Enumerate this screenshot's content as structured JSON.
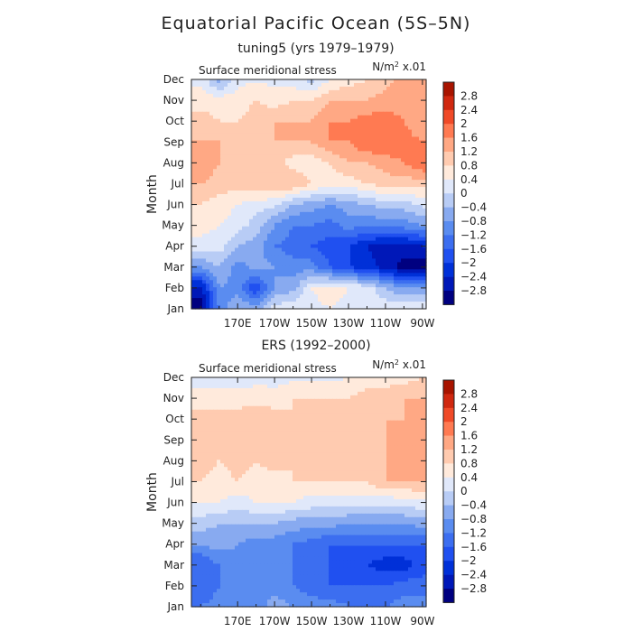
{
  "figure": {
    "title": "Equatorial Pacific Ocean (5S–5N)"
  },
  "colorbar_labels": [
    "2.8",
    "2.4",
    "2",
    "1.6",
    "1.2",
    "0.8",
    "0.4",
    "0",
    "−0.4",
    "−0.8",
    "−1.2",
    "−1.6",
    "−2",
    "−2.4",
    "−2.8"
  ],
  "chart_data": [
    {
      "type": "heatmap",
      "title": "tuning5 (yrs 1979–1979)",
      "panel_label": "Surface meridional stress",
      "unit_base": "N/m",
      "unit_exp": "2",
      "unit_scale": " x.01",
      "ylabel": "Month",
      "xlabel": "",
      "x": [
        150,
        160,
        170,
        180,
        190,
        200,
        210,
        220,
        230,
        240,
        250,
        260,
        270
      ],
      "x_tick_values": [
        170,
        190,
        210,
        230,
        250,
        270
      ],
      "x_tick_labels": [
        "170E",
        "170W",
        "150W",
        "130W",
        "110W",
        "90W"
      ],
      "xlim": [
        145,
        272
      ],
      "y_labels": [
        "Jan",
        "Feb",
        "Mar",
        "Apr",
        "May",
        "Jun",
        "Jul",
        "Aug",
        "Sep",
        "Oct",
        "Nov",
        "Dec"
      ],
      "levels": [
        -2.8,
        -2.4,
        -2,
        -1.6,
        -1.2,
        -0.8,
        -0.4,
        0,
        0.4,
        0.8,
        1.2,
        1.6,
        2,
        2.4,
        2.8
      ],
      "z": [
        [
          -3.0,
          -1.2,
          -0.4,
          -0.6,
          0.2,
          0.4,
          0.3,
          0.4,
          0.3,
          0.4,
          0.3,
          0.3,
          0.3
        ],
        [
          -2.6,
          -0.8,
          -1.0,
          -2.0,
          -0.8,
          -0.6,
          0.4,
          0.6,
          0.4,
          0.2,
          -0.4,
          -0.8,
          -0.8
        ],
        [
          -0.8,
          -0.4,
          -1.0,
          -0.6,
          -0.8,
          -1.0,
          -1.0,
          -1.6,
          -2.0,
          -2.2,
          -2.6,
          -3.0,
          -3.0
        ],
        [
          0.2,
          0.2,
          -0.4,
          -0.6,
          -1.2,
          -1.4,
          -1.6,
          -1.8,
          -2.0,
          -2.4,
          -2.6,
          -2.6,
          -2.4
        ],
        [
          0.6,
          0.4,
          0.2,
          -0.2,
          -0.8,
          -1.2,
          -1.2,
          -1.4,
          -1.0,
          -1.2,
          -1.0,
          -1.0,
          -0.8
        ],
        [
          0.8,
          0.6,
          0.4,
          0.2,
          0.1,
          -0.4,
          -0.6,
          -0.8,
          -0.6,
          -0.4,
          -0.2,
          -0.2,
          0.1
        ],
        [
          1.2,
          1.0,
          1.0,
          1.2,
          1.2,
          1.2,
          0.8,
          0.6,
          0.6,
          0.8,
          1.0,
          1.0,
          1.0
        ],
        [
          1.6,
          1.2,
          1.0,
          1.2,
          1.0,
          0.6,
          0.6,
          0.8,
          1.2,
          1.2,
          1.4,
          1.6,
          2.0
        ],
        [
          1.2,
          1.2,
          1.0,
          1.0,
          1.2,
          1.2,
          1.2,
          1.6,
          1.6,
          2.0,
          2.0,
          1.8,
          1.6
        ],
        [
          1.0,
          0.8,
          0.8,
          1.0,
          1.2,
          1.2,
          1.2,
          1.6,
          1.6,
          1.8,
          1.8,
          1.6,
          1.2
        ],
        [
          0.6,
          0.6,
          0.6,
          0.8,
          0.6,
          0.8,
          0.8,
          1.2,
          1.2,
          1.2,
          1.4,
          1.4,
          1.2
        ],
        [
          0.3,
          -0.6,
          0.3,
          0.3,
          0.3,
          0.2,
          -0.2,
          0.4,
          0.6,
          0.8,
          1.0,
          1.4,
          1.2
        ]
      ]
    },
    {
      "type": "heatmap",
      "title": "ERS (1992–2000)",
      "panel_label": "Surface meridional stress",
      "unit_base": "N/m",
      "unit_exp": "2",
      "unit_scale": " x.01",
      "ylabel": "Month",
      "xlabel": "",
      "x": [
        150,
        160,
        170,
        180,
        190,
        200,
        210,
        220,
        230,
        240,
        250,
        260,
        270
      ],
      "x_tick_values": [
        170,
        190,
        210,
        230,
        250,
        270
      ],
      "x_tick_labels": [
        "170E",
        "170W",
        "150W",
        "130W",
        "110W",
        "90W"
      ],
      "xlim": [
        145,
        272
      ],
      "y_labels": [
        "Jan",
        "Feb",
        "Mar",
        "Apr",
        "May",
        "Jun",
        "Jul",
        "Aug",
        "Sep",
        "Oct",
        "Nov",
        "Dec"
      ],
      "levels": [
        -2.8,
        -2.4,
        -2,
        -1.6,
        -1.2,
        -0.8,
        -0.4,
        0,
        0.4,
        0.8,
        1.2,
        1.6,
        2,
        2.4,
        2.8
      ],
      "z": [
        [
          -1.2,
          -1.0,
          -0.8,
          -1.0,
          -0.6,
          -0.8,
          -1.0,
          -1.0,
          -1.2,
          -1.2,
          -1.2,
          -1.0,
          -1.0
        ],
        [
          -1.6,
          -1.2,
          -1.0,
          -0.8,
          -1.0,
          -1.2,
          -1.4,
          -1.6,
          -1.6,
          -1.6,
          -1.6,
          -1.4,
          -1.4
        ],
        [
          -1.6,
          -1.2,
          -1.0,
          -0.8,
          -1.2,
          -1.2,
          -1.6,
          -1.6,
          -1.8,
          -2.0,
          -2.2,
          -2.2,
          -1.8
        ],
        [
          -0.8,
          -0.6,
          -0.8,
          -1.0,
          -1.0,
          -1.2,
          -1.4,
          -1.6,
          -1.6,
          -1.6,
          -1.6,
          -1.6,
          -1.6
        ],
        [
          -0.2,
          -0.4,
          -0.4,
          -0.4,
          -0.4,
          -0.6,
          -0.6,
          -0.6,
          -0.8,
          -0.8,
          -0.8,
          -0.8,
          -0.6
        ],
        [
          0.4,
          0.4,
          0.2,
          0.4,
          0.4,
          0.4,
          0.2,
          0.2,
          0.2,
          0.2,
          0.1,
          0.2,
          0.3
        ],
        [
          0.8,
          0.6,
          0.8,
          0.6,
          0.6,
          0.8,
          0.8,
          0.8,
          0.8,
          0.8,
          1.2,
          1.2,
          1.2
        ],
        [
          1.0,
          0.8,
          1.0,
          0.8,
          1.0,
          0.8,
          0.8,
          1.0,
          1.0,
          1.2,
          1.2,
          1.4,
          1.4
        ],
        [
          1.2,
          0.8,
          1.0,
          1.0,
          1.0,
          1.0,
          0.8,
          1.0,
          1.0,
          1.0,
          1.2,
          1.2,
          1.6
        ],
        [
          1.0,
          1.0,
          1.0,
          1.2,
          1.0,
          0.8,
          0.8,
          1.0,
          1.2,
          1.2,
          1.2,
          1.2,
          1.4
        ],
        [
          0.6,
          0.6,
          0.6,
          0.6,
          0.6,
          0.8,
          0.8,
          0.8,
          0.8,
          1.0,
          1.0,
          1.2,
          1.2
        ],
        [
          0.1,
          0.2,
          0.1,
          0.3,
          0.2,
          0.3,
          0.3,
          0.3,
          0.4,
          0.6,
          0.6,
          0.6,
          0.8
        ]
      ]
    }
  ],
  "colors": {
    "palette": [
      "#000080",
      "#0018b8",
      "#0030d8",
      "#2050f0",
      "#3c6ef0",
      "#5a8cf0",
      "#88aaf0",
      "#b8ccf5",
      "#e0e8fa",
      "#ffeadc",
      "#ffcbb0",
      "#ffa884",
      "#ff7a52",
      "#f04a28",
      "#d02810",
      "#a81400"
    ]
  }
}
